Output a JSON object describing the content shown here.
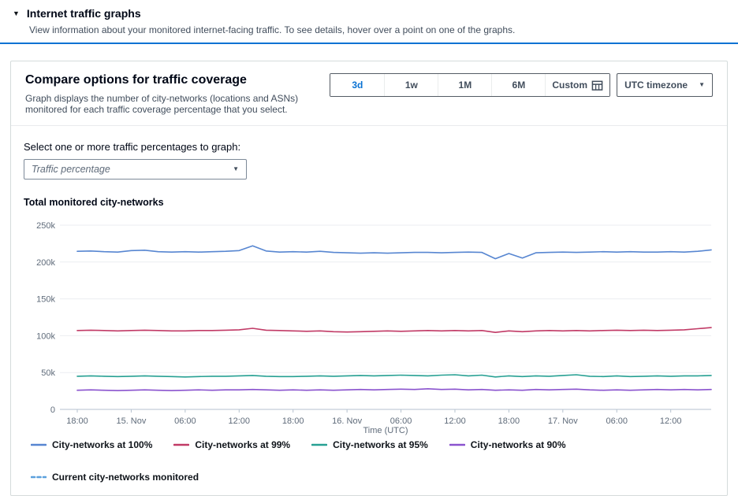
{
  "expander": {
    "title": "Internet traffic graphs",
    "description": "View information about your monitored internet-facing traffic. To see details, hover over a point on one of the graphs."
  },
  "card": {
    "title": "Compare options for traffic coverage",
    "description": "Graph displays the number of city-networks (locations and ASNs) monitored for each traffic coverage percentage that you select.",
    "range_buttons": [
      {
        "label": "3d",
        "selected": true
      },
      {
        "label": "1w",
        "selected": false
      },
      {
        "label": "1M",
        "selected": false
      },
      {
        "label": "6M",
        "selected": false
      },
      {
        "label": "Custom",
        "selected": false,
        "icon": "calendar"
      }
    ],
    "timezone_select": {
      "value": "UTC timezone"
    },
    "traffic_select": {
      "label": "Select one or more traffic percentages to graph:",
      "placeholder": "Traffic percentage"
    }
  },
  "colors": {
    "accent": "#0972d3",
    "divider": "#0972d3",
    "axis": "#b6c2cf",
    "grid": "#ebeef1"
  },
  "chart_data": {
    "type": "line",
    "title": "Total monitored city-networks",
    "xlabel": "Time (UTC)",
    "ylim": [
      0,
      250000
    ],
    "grid": true,
    "legend_position": "bottom",
    "y_ticks": [
      {
        "value": 0,
        "label": "0"
      },
      {
        "value": 50000,
        "label": "50k"
      },
      {
        "value": 100000,
        "label": "100k"
      },
      {
        "value": 150000,
        "label": "150k"
      },
      {
        "value": 200000,
        "label": "200k"
      },
      {
        "value": 250000,
        "label": "250k"
      }
    ],
    "x_tick_labels": [
      "18:00",
      "15. Nov",
      "06:00",
      "12:00",
      "18:00",
      "16. Nov",
      "06:00",
      "12:00",
      "18:00",
      "17. Nov",
      "06:00",
      "12:00"
    ],
    "x_tick_every": 4,
    "series": [
      {
        "name": "City-networks at 100%",
        "color": "#5786d1",
        "style": "solid",
        "values": [
          214500,
          215000,
          214000,
          213500,
          215500,
          216000,
          214000,
          213500,
          214000,
          213500,
          214000,
          214500,
          215500,
          222000,
          215000,
          213500,
          214000,
          213500,
          214500,
          213000,
          212500,
          212000,
          212500,
          212000,
          212500,
          213000,
          213000,
          212500,
          213000,
          213500,
          213000,
          204500,
          211500,
          205500,
          212500,
          213000,
          213500,
          213000,
          213500,
          214000,
          213500,
          214000,
          213500,
          213500,
          214000,
          213500,
          214500,
          216500
        ]
      },
      {
        "name": "City-networks at 99%",
        "color": "#c13a66",
        "style": "solid",
        "values": [
          107000,
          107500,
          107000,
          106500,
          107000,
          107500,
          107000,
          106500,
          106500,
          107000,
          107000,
          107500,
          108000,
          110000,
          107500,
          107000,
          106500,
          106000,
          106500,
          105500,
          105000,
          105500,
          106000,
          106500,
          106000,
          106500,
          107000,
          106500,
          107000,
          106500,
          107000,
          104500,
          106500,
          105500,
          106500,
          107000,
          106500,
          107000,
          106500,
          107000,
          107500,
          107000,
          107500,
          107000,
          107500,
          108000,
          109500,
          111000
        ]
      },
      {
        "name": "City-networks at 95%",
        "color": "#27a093",
        "style": "solid",
        "values": [
          45000,
          45500,
          45000,
          44500,
          45000,
          45500,
          45000,
          44500,
          44000,
          44500,
          45000,
          45000,
          45500,
          46000,
          45000,
          44500,
          44500,
          45000,
          45500,
          45000,
          45500,
          46000,
          45500,
          46000,
          46500,
          46000,
          45500,
          46500,
          47000,
          45500,
          46500,
          44000,
          45500,
          44500,
          45500,
          45000,
          46000,
          47000,
          45000,
          44500,
          45500,
          44500,
          45000,
          45500,
          45000,
          45500,
          45500,
          46000
        ]
      },
      {
        "name": "City-networks at 90%",
        "color": "#8a53ce",
        "style": "solid",
        "values": [
          26000,
          26500,
          26000,
          25500,
          26000,
          26500,
          26000,
          25500,
          26000,
          26500,
          26000,
          26500,
          26500,
          27000,
          26500,
          26000,
          26500,
          26000,
          26500,
          26000,
          26500,
          27000,
          26500,
          27000,
          27500,
          27000,
          28000,
          27000,
          27500,
          26500,
          27000,
          26000,
          26500,
          26000,
          27000,
          26500,
          27000,
          27500,
          26500,
          26000,
          26500,
          26000,
          26500,
          27000,
          26500,
          27000,
          26500,
          27000
        ]
      },
      {
        "name": "Current city-networks monitored",
        "color": "#5ba0dd",
        "style": "dashed",
        "values": []
      }
    ]
  }
}
